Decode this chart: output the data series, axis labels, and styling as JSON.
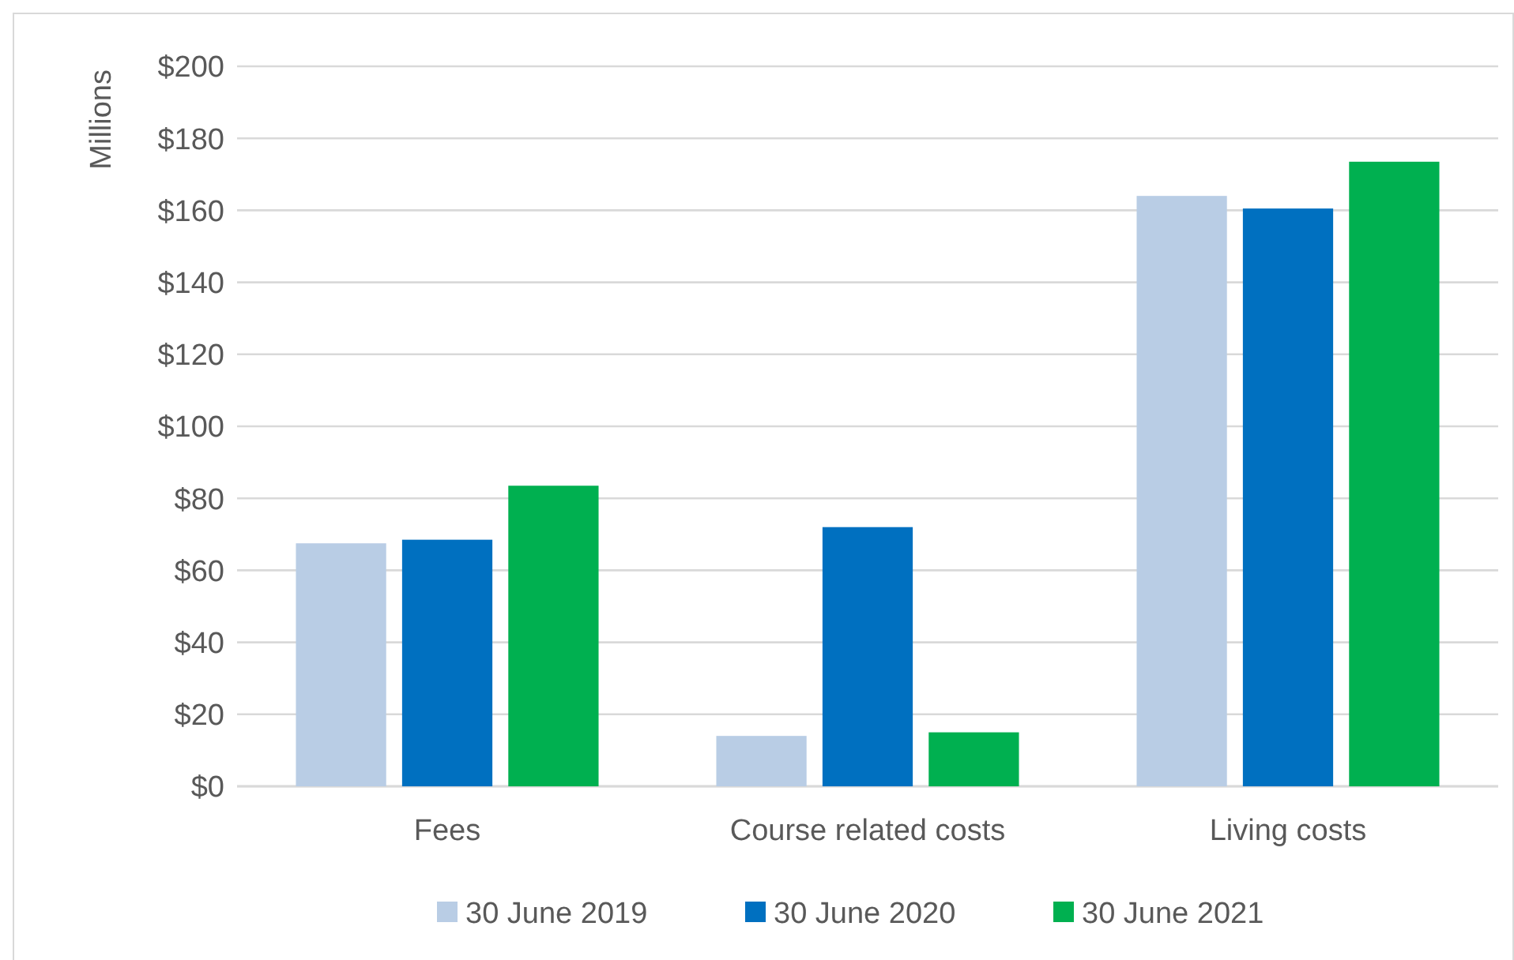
{
  "chart_data": {
    "type": "bar",
    "ylabel": "Millions",
    "categories": [
      "Fees",
      "Course related costs",
      "Living costs"
    ],
    "series": [
      {
        "name": "30 June 2019",
        "color": "#b9cde5",
        "values": [
          67.5,
          14,
          164
        ]
      },
      {
        "name": "30 June 2020",
        "color": "#0070c0",
        "values": [
          68.5,
          72,
          160.5
        ]
      },
      {
        "name": "30 June 2021",
        "color": "#00b050",
        "values": [
          83.5,
          15,
          173.5
        ]
      }
    ],
    "ylim": [
      0,
      200
    ],
    "yticks": [
      {
        "value": 0,
        "label": "$0"
      },
      {
        "value": 20,
        "label": "$20"
      },
      {
        "value": 40,
        "label": "$40"
      },
      {
        "value": 60,
        "label": "$60"
      },
      {
        "value": 80,
        "label": "$80"
      },
      {
        "value": 100,
        "label": "$100"
      },
      {
        "value": 120,
        "label": "$120"
      },
      {
        "value": 140,
        "label": "$140"
      },
      {
        "value": 160,
        "label": "$160"
      },
      {
        "value": 180,
        "label": "$180"
      },
      {
        "value": 200,
        "label": "$200"
      }
    ],
    "grid": "y",
    "legend": "bottom"
  }
}
